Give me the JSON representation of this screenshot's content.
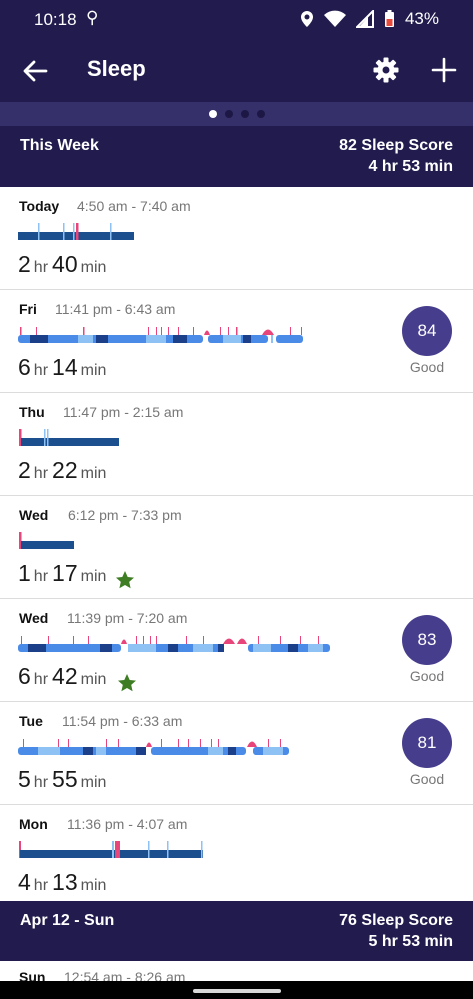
{
  "status_bar": {
    "time": "10:18",
    "wifi_call_glyph": "⚲",
    "battery": "43%"
  },
  "app_bar": {
    "title": "Sleep"
  },
  "this_week": {
    "label": "This Week",
    "score": "82 Sleep Score",
    "duration": "4 hr 53 min"
  },
  "entries": [
    {
      "day": "Today",
      "range": "4:50 am - 7:40 am",
      "hours": "2",
      "hr_unit": "hr",
      "minutes": "40",
      "min_unit": "min"
    },
    {
      "day": "Fri",
      "range": "11:41 pm - 6:43 am",
      "hours": "6",
      "hr_unit": "hr",
      "minutes": "14",
      "min_unit": "min",
      "score": "84",
      "score_label": "Good"
    },
    {
      "day": "Thu",
      "range": "11:47 pm - 2:15 am",
      "hours": "2",
      "hr_unit": "hr",
      "minutes": "22",
      "min_unit": "min"
    },
    {
      "day": "Wed",
      "range": "6:12 pm - 7:33 pm",
      "hours": "1",
      "hr_unit": "hr",
      "minutes": "17",
      "min_unit": "min",
      "starred": true
    },
    {
      "day": "Wed",
      "range": "11:39 pm - 7:20 am",
      "hours": "6",
      "hr_unit": "hr",
      "minutes": "42",
      "min_unit": "min",
      "starred": true,
      "score": "83",
      "score_label": "Good"
    },
    {
      "day": "Tue",
      "range": "11:54 pm - 6:33 am",
      "hours": "5",
      "hr_unit": "hr",
      "minutes": "55",
      "min_unit": "min",
      "score": "81",
      "score_label": "Good"
    },
    {
      "day": "Mon",
      "range": "11:36 pm - 4:07 am",
      "hours": "4",
      "hr_unit": "hr",
      "minutes": "13",
      "min_unit": "min"
    }
  ],
  "prev_week": {
    "label": "Apr 12 - Sun",
    "score": "76 Sleep Score",
    "duration": "5 hr 53 min"
  },
  "partial_entry": {
    "day": "Sun",
    "range": "12:54 am - 8:26 am"
  },
  "colors": {
    "header_bg": "#221c4e",
    "badge": "#463e8c",
    "deep": "#1c3f8a",
    "light": "#4a8be8",
    "rem": "#8ec2f5",
    "awake": "#e8457a",
    "star": "#3f7d24"
  }
}
